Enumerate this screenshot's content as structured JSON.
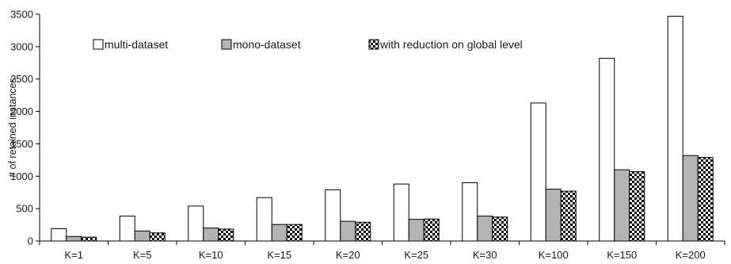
{
  "chart_data": {
    "type": "bar",
    "ylabel": "# of retained instances",
    "xlabel": "",
    "ylim": [
      0,
      3500
    ],
    "yticks": [
      0,
      500,
      1000,
      1500,
      2000,
      2500,
      3000,
      3500
    ],
    "grid": false,
    "legend_position": "top-left, horizontal",
    "categories": [
      "K=1",
      "K=5",
      "K=10",
      "K=15",
      "K=20",
      "K=25",
      "K=30",
      "K=100",
      "K=150",
      "K=200"
    ],
    "series": [
      {
        "name": "multi-dataset",
        "style": "white",
        "values": [
          190,
          385,
          540,
          670,
          790,
          880,
          900,
          2130,
          2820,
          3470
        ]
      },
      {
        "name": "mono-dataset",
        "style": "gray",
        "values": [
          70,
          155,
          200,
          255,
          305,
          335,
          385,
          800,
          1100,
          1320
        ]
      },
      {
        "name": "with reduction on global level",
        "style": "checkered",
        "values": [
          60,
          125,
          185,
          255,
          290,
          340,
          370,
          770,
          1070,
          1290
        ]
      }
    ],
    "colors": {
      "axis": "#000000",
      "bar_outline": "#000000",
      "gray_fill": "#b3b3b3",
      "white_fill": "#ffffff",
      "checker": "#000000"
    }
  }
}
